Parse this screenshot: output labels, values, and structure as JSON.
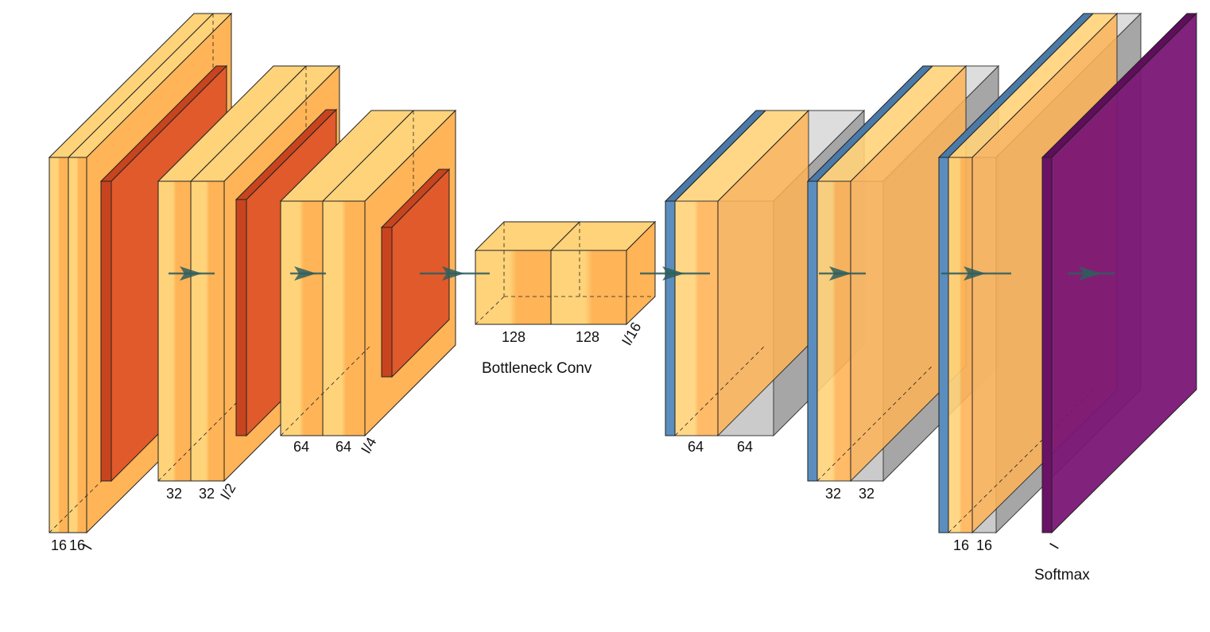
{
  "colors": {
    "conv_front": "#FFD37A",
    "conv_side": "#FFB457",
    "pool_front": "#E05A2B",
    "pool_side": "#C8441E",
    "unpool_blue": "#5B8DBE",
    "concat_grey": "#9A9A9A",
    "softmax": "#7A1675",
    "arrow": "#2E5E5E"
  },
  "encoder": {
    "block1": {
      "ch_a": "16",
      "ch_b": "16",
      "size": "I"
    },
    "block2": {
      "ch_a": "32",
      "ch_b": "32",
      "size": "I/2"
    },
    "block3": {
      "ch_a": "64",
      "ch_b": "64",
      "size": "I/4"
    }
  },
  "bottleneck": {
    "ch_a": "128",
    "ch_b": "128",
    "size": "I/16",
    "caption": "Bottleneck Conv"
  },
  "decoder": {
    "block1": {
      "ch_a": "64",
      "ch_b": "64"
    },
    "block2": {
      "ch_a": "32",
      "ch_b": "32"
    },
    "block3": {
      "ch_a": "16",
      "ch_b": "16"
    }
  },
  "output": {
    "size": "I",
    "caption": "Softmax"
  }
}
